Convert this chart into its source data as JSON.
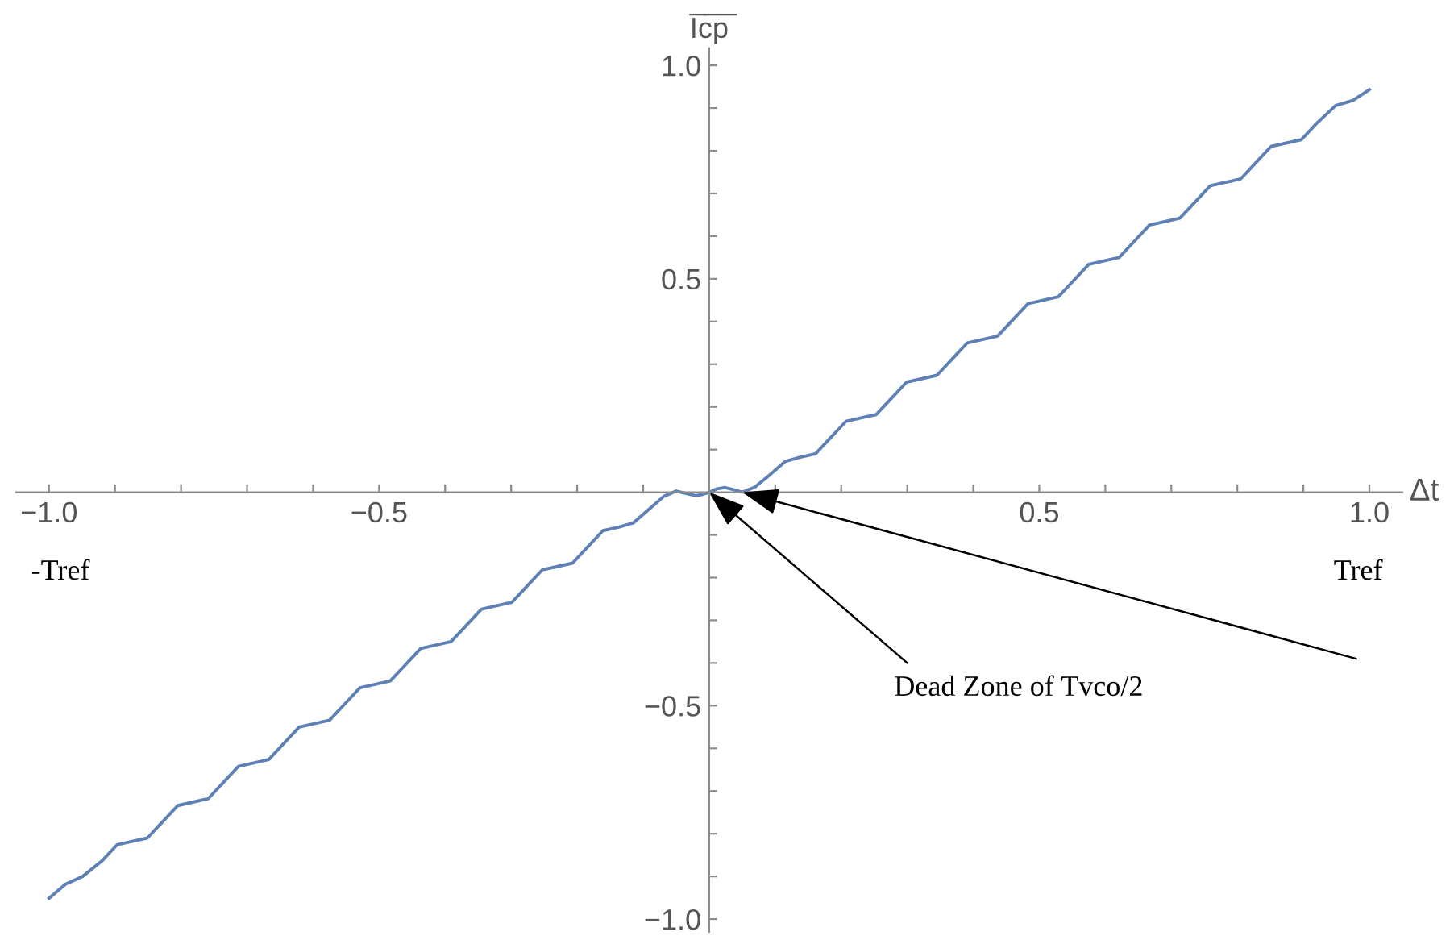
{
  "chart_data": {
    "type": "line",
    "xlabel": "Δt",
    "ylabel": "I̅c̅p̅",
    "x": [
      -1.0,
      -0.975,
      -0.949,
      -0.92,
      -0.897,
      -0.874,
      -0.851,
      -0.828,
      -0.805,
      -0.782,
      -0.759,
      -0.736,
      -0.713,
      -0.69,
      -0.667,
      -0.644,
      -0.621,
      -0.598,
      -0.575,
      -0.552,
      -0.529,
      -0.506,
      -0.483,
      -0.46,
      -0.437,
      -0.414,
      -0.391,
      -0.368,
      -0.345,
      -0.322,
      -0.299,
      -0.276,
      -0.253,
      -0.23,
      -0.207,
      -0.184,
      -0.161,
      -0.138,
      -0.115,
      -0.092,
      -0.069,
      -0.05,
      -0.035,
      -0.02,
      -0.01,
      0,
      0.012,
      0.024,
      0.037,
      0.05,
      0.069,
      0.092,
      0.115,
      0.138,
      0.161,
      0.184,
      0.207,
      0.23,
      0.253,
      0.276,
      0.299,
      0.322,
      0.345,
      0.368,
      0.391,
      0.414,
      0.437,
      0.46,
      0.483,
      0.506,
      0.529,
      0.552,
      0.575,
      0.598,
      0.621,
      0.644,
      0.667,
      0.69,
      0.713,
      0.736,
      0.759,
      0.782,
      0.805,
      0.828,
      0.851,
      0.874,
      0.897,
      0.92,
      0.949,
      0.975,
      1.0
    ],
    "series": [
      {
        "color": "#5e81b5",
        "values": [
          -0.951,
          -0.918,
          -0.9,
          -0.864,
          -0.826,
          -0.818,
          -0.81,
          -0.772,
          -0.734,
          -0.726,
          -0.718,
          -0.68,
          -0.642,
          -0.634,
          -0.626,
          -0.588,
          -0.55,
          -0.542,
          -0.534,
          -0.496,
          -0.458,
          -0.45,
          -0.442,
          -0.404,
          -0.366,
          -0.358,
          -0.35,
          -0.312,
          -0.274,
          -0.266,
          -0.258,
          -0.22,
          -0.182,
          -0.174,
          -0.166,
          -0.128,
          -0.09,
          -0.082,
          -0.072,
          -0.041,
          -0.01,
          0.003,
          -0.003,
          -0.008,
          -0.005,
          0,
          0.008,
          0.011,
          0.006,
          0.0,
          0.012,
          0.041,
          0.072,
          0.082,
          0.09,
          0.128,
          0.166,
          0.174,
          0.182,
          0.22,
          0.258,
          0.266,
          0.274,
          0.312,
          0.35,
          0.358,
          0.366,
          0.404,
          0.442,
          0.45,
          0.458,
          0.496,
          0.534,
          0.542,
          0.55,
          0.588,
          0.626,
          0.634,
          0.642,
          0.68,
          0.718,
          0.726,
          0.734,
          0.772,
          0.81,
          0.818,
          0.826,
          0.864,
          0.906,
          0.918,
          0.943
        ]
      }
    ],
    "xlim": [
      -1.05,
      1.05
    ],
    "ylim": [
      -1.03,
      1.04
    ],
    "xticks": [
      {
        "value": -1.0,
        "label": "−1.0"
      },
      {
        "value": -0.9,
        "label": null
      },
      {
        "value": -0.8,
        "label": null
      },
      {
        "value": -0.7,
        "label": null
      },
      {
        "value": -0.6,
        "label": null
      },
      {
        "value": -0.5,
        "label": "−0.5"
      },
      {
        "value": -0.4,
        "label": null
      },
      {
        "value": -0.3,
        "label": null
      },
      {
        "value": -0.2,
        "label": null
      },
      {
        "value": -0.1,
        "label": null
      },
      {
        "value": 0.1,
        "label": null
      },
      {
        "value": 0.2,
        "label": null
      },
      {
        "value": 0.3,
        "label": null
      },
      {
        "value": 0.4,
        "label": null
      },
      0.5,
      {
        "value": 0.6,
        "label": null
      },
      {
        "value": 0.7,
        "label": null
      },
      {
        "value": 0.8,
        "label": null
      },
      {
        "value": 0.9,
        "label": null
      },
      {
        "value": 1.0,
        "label": "1.0"
      }
    ],
    "yticks": [
      {
        "value": -1.0,
        "label": "−1.0"
      },
      {
        "value": -0.9,
        "label": null
      },
      {
        "value": -0.8,
        "label": null
      },
      {
        "value": -0.7,
        "label": null
      },
      {
        "value": -0.6,
        "label": null
      },
      {
        "value": -0.5,
        "label": "−0.5"
      },
      {
        "value": -0.4,
        "label": null
      },
      {
        "value": -0.3,
        "label": null
      },
      {
        "value": -0.2,
        "label": null
      },
      {
        "value": -0.1,
        "label": null
      },
      {
        "value": 0.1,
        "label": null
      },
      {
        "value": 0.2,
        "label": null
      },
      {
        "value": 0.3,
        "label": null
      },
      {
        "value": 0.4,
        "label": null
      },
      0.5,
      {
        "value": 0.6,
        "label": null
      },
      {
        "value": 0.7,
        "label": null
      },
      {
        "value": 0.8,
        "label": null
      },
      {
        "value": 0.9,
        "label": null
      },
      {
        "value": 1.0,
        "label": "1.0"
      }
    ],
    "grid": false,
    "marker": "none",
    "line_style": "solid",
    "annotations": [
      "-Tref",
      "Tref",
      {
        "text": "Dead Zone of Tvco/2",
        "x": 0,
        "y": 0
      }
    ]
  }
}
